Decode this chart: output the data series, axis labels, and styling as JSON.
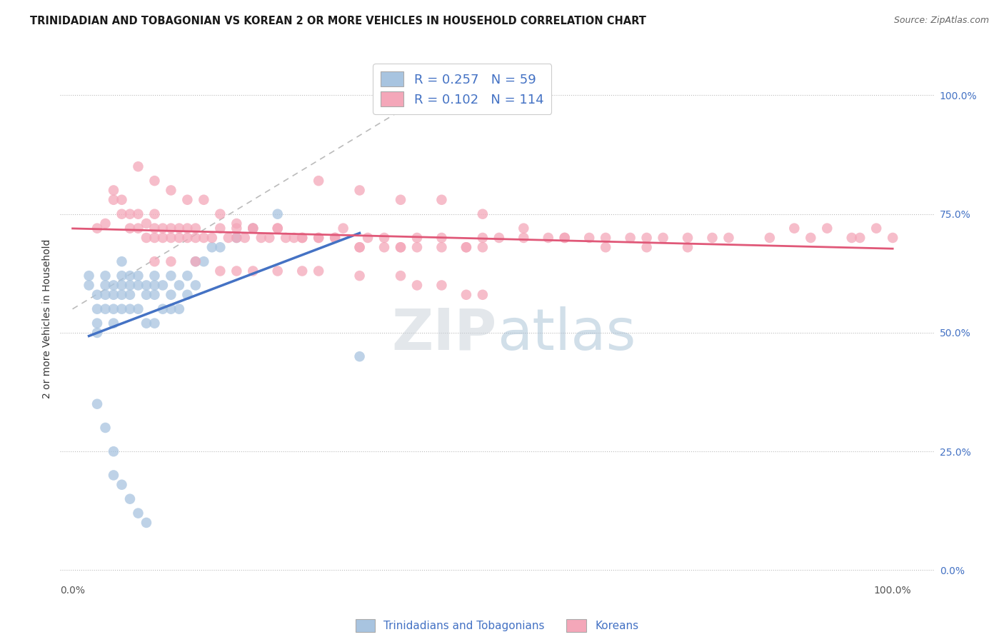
{
  "title": "TRINIDADIAN AND TOBAGONIAN VS KOREAN 2 OR MORE VEHICLES IN HOUSEHOLD CORRELATION CHART",
  "source": "Source: ZipAtlas.com",
  "ylabel": "2 or more Vehicles in Household",
  "legend_labels": [
    "Trinidadians and Tobagonians",
    "Koreans"
  ],
  "legend_R": [
    0.257,
    0.102
  ],
  "legend_N": [
    59,
    114
  ],
  "blue_color": "#a8c4e0",
  "pink_color": "#f4a7b9",
  "line_blue": "#4472c4",
  "line_pink": "#e05878",
  "line_dash_color": "#aaaaaa",
  "watermark_color": "#c8d8e8",
  "title_fontsize": 10.5,
  "source_fontsize": 9,
  "axis_label_fontsize": 10,
  "tick_fontsize": 10,
  "legend_fontsize": 13,
  "blue_x": [
    0.02,
    0.02,
    0.03,
    0.03,
    0.03,
    0.03,
    0.04,
    0.04,
    0.04,
    0.04,
    0.05,
    0.05,
    0.05,
    0.05,
    0.06,
    0.06,
    0.06,
    0.06,
    0.06,
    0.07,
    0.07,
    0.07,
    0.07,
    0.08,
    0.08,
    0.08,
    0.09,
    0.09,
    0.09,
    0.1,
    0.1,
    0.1,
    0.1,
    0.11,
    0.11,
    0.12,
    0.12,
    0.12,
    0.13,
    0.13,
    0.14,
    0.14,
    0.15,
    0.15,
    0.16,
    0.17,
    0.18,
    0.2,
    0.22,
    0.25,
    0.03,
    0.04,
    0.05,
    0.05,
    0.06,
    0.07,
    0.08,
    0.09,
    0.35
  ],
  "blue_y": [
    0.62,
    0.6,
    0.58,
    0.55,
    0.52,
    0.5,
    0.62,
    0.6,
    0.58,
    0.55,
    0.6,
    0.58,
    0.55,
    0.52,
    0.65,
    0.62,
    0.6,
    0.58,
    0.55,
    0.62,
    0.6,
    0.58,
    0.55,
    0.62,
    0.6,
    0.55,
    0.6,
    0.58,
    0.52,
    0.62,
    0.6,
    0.58,
    0.52,
    0.6,
    0.55,
    0.62,
    0.58,
    0.55,
    0.6,
    0.55,
    0.62,
    0.58,
    0.65,
    0.6,
    0.65,
    0.68,
    0.68,
    0.7,
    0.72,
    0.75,
    0.35,
    0.3,
    0.25,
    0.2,
    0.18,
    0.15,
    0.12,
    0.1,
    0.45
  ],
  "pink_x": [
    0.03,
    0.04,
    0.05,
    0.05,
    0.06,
    0.06,
    0.07,
    0.07,
    0.08,
    0.08,
    0.09,
    0.09,
    0.1,
    0.1,
    0.1,
    0.11,
    0.11,
    0.12,
    0.12,
    0.13,
    0.13,
    0.14,
    0.14,
    0.15,
    0.15,
    0.16,
    0.17,
    0.18,
    0.19,
    0.2,
    0.2,
    0.21,
    0.22,
    0.23,
    0.24,
    0.25,
    0.26,
    0.27,
    0.28,
    0.3,
    0.32,
    0.33,
    0.35,
    0.36,
    0.38,
    0.4,
    0.42,
    0.45,
    0.48,
    0.5,
    0.52,
    0.55,
    0.58,
    0.6,
    0.63,
    0.65,
    0.68,
    0.7,
    0.72,
    0.75,
    0.78,
    0.8,
    0.85,
    0.88,
    0.9,
    0.92,
    0.95,
    0.96,
    0.98,
    1.0,
    0.08,
    0.1,
    0.12,
    0.14,
    0.16,
    0.18,
    0.2,
    0.22,
    0.25,
    0.28,
    0.3,
    0.32,
    0.35,
    0.38,
    0.4,
    0.42,
    0.45,
    0.48,
    0.5,
    0.1,
    0.12,
    0.15,
    0.18,
    0.2,
    0.22,
    0.25,
    0.28,
    0.3,
    0.35,
    0.4,
    0.42,
    0.45,
    0.48,
    0.5,
    0.3,
    0.35,
    0.4,
    0.45,
    0.5,
    0.55,
    0.6,
    0.65,
    0.7,
    0.75
  ],
  "pink_y": [
    0.72,
    0.73,
    0.78,
    0.8,
    0.75,
    0.78,
    0.72,
    0.75,
    0.72,
    0.75,
    0.7,
    0.73,
    0.75,
    0.72,
    0.7,
    0.72,
    0.7,
    0.72,
    0.7,
    0.72,
    0.7,
    0.72,
    0.7,
    0.72,
    0.7,
    0.7,
    0.7,
    0.72,
    0.7,
    0.72,
    0.7,
    0.7,
    0.72,
    0.7,
    0.7,
    0.72,
    0.7,
    0.7,
    0.7,
    0.7,
    0.7,
    0.72,
    0.68,
    0.7,
    0.7,
    0.68,
    0.7,
    0.7,
    0.68,
    0.7,
    0.7,
    0.7,
    0.7,
    0.7,
    0.7,
    0.7,
    0.7,
    0.7,
    0.7,
    0.7,
    0.7,
    0.7,
    0.7,
    0.72,
    0.7,
    0.72,
    0.7,
    0.7,
    0.72,
    0.7,
    0.85,
    0.82,
    0.8,
    0.78,
    0.78,
    0.75,
    0.73,
    0.72,
    0.72,
    0.7,
    0.7,
    0.7,
    0.68,
    0.68,
    0.68,
    0.68,
    0.68,
    0.68,
    0.68,
    0.65,
    0.65,
    0.65,
    0.63,
    0.63,
    0.63,
    0.63,
    0.63,
    0.63,
    0.62,
    0.62,
    0.6,
    0.6,
    0.58,
    0.58,
    0.82,
    0.8,
    0.78,
    0.78,
    0.75,
    0.72,
    0.7,
    0.68,
    0.68,
    0.68
  ]
}
